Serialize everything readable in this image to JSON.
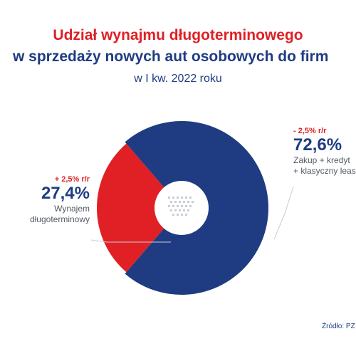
{
  "header": {
    "title_line1": "Udział wynajmu długoterminowego",
    "title_line2": "w sprzedaży nowych aut osobowych do firm",
    "subtitle": "w I kw. 2022 roku"
  },
  "labels": {
    "rental": {
      "change": "+ 2,5% r/r",
      "value": "27,4%",
      "desc_line1": "Wynajem",
      "desc_line2": "długoterminowy"
    },
    "purchase": {
      "change": "- 2,5% r/r",
      "value": "72,6%",
      "desc_line1": "Zakup + kredyt",
      "desc_line2": "+ klasyczny leasing"
    }
  },
  "source": "Źródło: PZ",
  "colors": {
    "rental": "#e02025",
    "purchase": "#1f3c82",
    "title_red": "#e02025",
    "title_blue": "#1f3c82"
  },
  "chart_data": {
    "type": "pie",
    "categories": [
      "Wynajem długoterminowy",
      "Zakup + kredyt + klasyczny leasing"
    ],
    "values": [
      27.4,
      72.6
    ],
    "title": "Udział wynajmu długoterminowego w sprzedaży nowych aut osobowych do firm",
    "subtitle": "w I kw. 2022 roku",
    "donut": true,
    "annotations": [
      "+ 2,5% r/r",
      "- 2,5% r/r"
    ]
  }
}
